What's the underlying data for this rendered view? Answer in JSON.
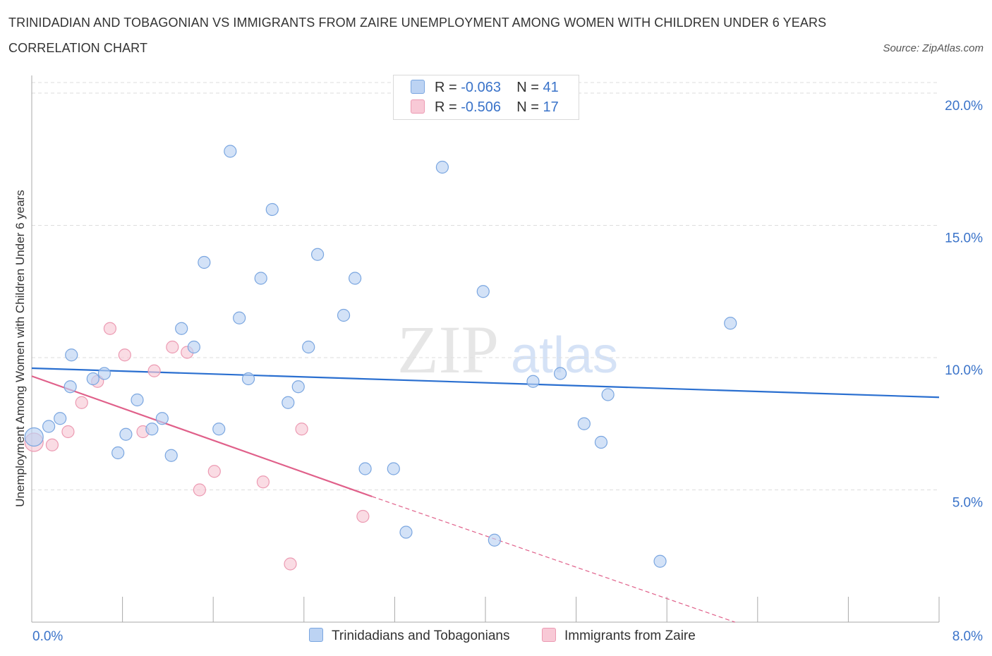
{
  "title": "TRINIDADIAN AND TOBAGONIAN VS IMMIGRANTS FROM ZAIRE UNEMPLOYMENT AMONG WOMEN WITH CHILDREN UNDER 6 YEARS CORRELATION CHART",
  "source": "Source: ZipAtlas.com",
  "watermark": {
    "zip": "ZIP",
    "atlas": "atlas"
  },
  "legend": {
    "r_label": "R =",
    "n_label": "N =",
    "series1": {
      "r": "-0.063",
      "n": "41"
    },
    "series2": {
      "r": "-0.506",
      "n": "17"
    }
  },
  "colors": {
    "blue_fill": "#bcd3f3",
    "blue_stroke": "#7aa6e0",
    "blue_line": "#2a6fd0",
    "pink_fill": "#f8c9d6",
    "pink_stroke": "#ec9ab2",
    "pink_line": "#e0608a",
    "axis_text": "#3a73c9",
    "grid": "#dddddd"
  },
  "chart_data": {
    "type": "scatter",
    "title": "TRINIDADIAN AND TOBAGONIAN VS IMMIGRANTS FROM ZAIRE UNEMPLOYMENT AMONG WOMEN WITH CHILDREN UNDER 6 YEARS CORRELATION CHART",
    "xlabel": "",
    "ylabel": "Unemployment Among Women with Children Under 6 years",
    "xlim": [
      0,
      8
    ],
    "ylim": [
      0,
      20.4
    ],
    "x_tick_labels": [
      "0.0%",
      "8.0%"
    ],
    "y_ticks": [
      5,
      10,
      15,
      20
    ],
    "y_tick_labels": [
      "5.0%",
      "10.0%",
      "15.0%",
      "20.0%"
    ],
    "grid": true,
    "legend_position": "top-center",
    "series": [
      {
        "name": "Trinidadians and Tobagonians",
        "color": "#7aa6e0",
        "r": -0.063,
        "n": 41,
        "trend": {
          "x": [
            0.0,
            8.0
          ],
          "y": [
            9.6,
            8.5
          ]
        },
        "points": [
          [
            0.02,
            7.0
          ],
          [
            0.15,
            7.4
          ],
          [
            0.25,
            7.7
          ],
          [
            0.35,
            10.1
          ],
          [
            0.34,
            8.9
          ],
          [
            0.54,
            9.2
          ],
          [
            0.64,
            9.4
          ],
          [
            0.76,
            6.4
          ],
          [
            0.83,
            7.1
          ],
          [
            0.93,
            8.4
          ],
          [
            1.06,
            7.3
          ],
          [
            1.15,
            7.7
          ],
          [
            1.23,
            6.3
          ],
          [
            1.32,
            11.1
          ],
          [
            1.43,
            10.4
          ],
          [
            1.52,
            13.6
          ],
          [
            1.65,
            7.3
          ],
          [
            1.75,
            17.8
          ],
          [
            1.83,
            11.5
          ],
          [
            1.91,
            9.2
          ],
          [
            2.02,
            13.0
          ],
          [
            2.12,
            15.6
          ],
          [
            2.26,
            8.3
          ],
          [
            2.35,
            8.9
          ],
          [
            2.44,
            10.4
          ],
          [
            2.52,
            13.9
          ],
          [
            2.75,
            11.6
          ],
          [
            2.85,
            13.0
          ],
          [
            2.94,
            5.8
          ],
          [
            3.19,
            5.8
          ],
          [
            3.3,
            3.4
          ],
          [
            3.62,
            17.2
          ],
          [
            3.98,
            12.5
          ],
          [
            4.08,
            3.1
          ],
          [
            4.42,
            9.1
          ],
          [
            4.66,
            9.4
          ],
          [
            4.87,
            7.5
          ],
          [
            5.02,
            6.8
          ],
          [
            5.08,
            8.6
          ],
          [
            5.54,
            2.3
          ],
          [
            6.16,
            11.3
          ]
        ]
      },
      {
        "name": "Immigrants from Zaire",
        "color": "#ec9ab2",
        "r": -0.506,
        "n": 17,
        "trend": {
          "x": [
            0.0,
            3.0
          ],
          "y": [
            9.3,
            4.75
          ],
          "dashed_to": {
            "x": 6.2,
            "y": 0.0
          }
        },
        "points": [
          [
            0.02,
            6.8
          ],
          [
            0.18,
            6.7
          ],
          [
            0.32,
            7.2
          ],
          [
            0.44,
            8.3
          ],
          [
            0.58,
            9.1
          ],
          [
            0.69,
            11.1
          ],
          [
            0.82,
            10.1
          ],
          [
            0.98,
            7.2
          ],
          [
            1.08,
            9.5
          ],
          [
            1.24,
            10.4
          ],
          [
            1.37,
            10.2
          ],
          [
            1.48,
            5.0
          ],
          [
            1.61,
            5.7
          ],
          [
            2.04,
            5.3
          ],
          [
            2.28,
            2.2
          ],
          [
            2.38,
            7.3
          ],
          [
            2.92,
            4.0
          ]
        ]
      }
    ]
  },
  "bottom_legend": {
    "series1_label": "Trinidadians and Tobagonians",
    "series2_label": "Immigrants from Zaire"
  }
}
